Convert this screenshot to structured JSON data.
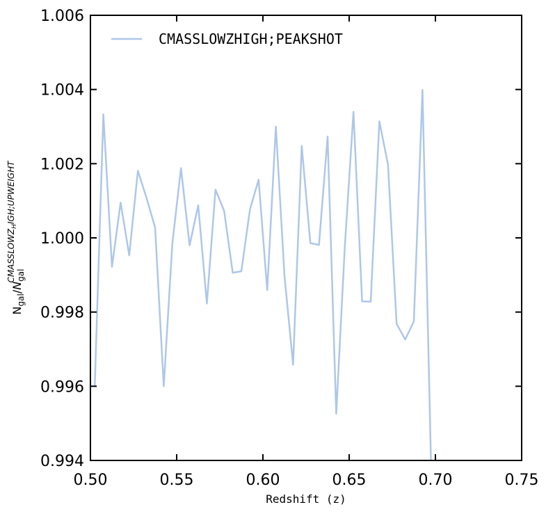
{
  "chart_data": {
    "type": "line",
    "xlabel": "Redshift (z)",
    "ylabel_parts": {
      "lhs": "N",
      "lhs_sub": "gal",
      "slash": "/",
      "rhs": "N",
      "rhs_sub": "gal",
      "rhs_sup": "CMASSLOWZ",
      "rhs_sup_sub": "H",
      "rhs_sup_rest": "IGH;UPWEIGHT"
    },
    "xlim": [
      0.5,
      0.75
    ],
    "ylim": [
      0.994,
      1.006
    ],
    "xticks": [
      "0.50",
      "0.55",
      "0.60",
      "0.65",
      "0.70",
      "0.75"
    ],
    "yticks": [
      "0.994",
      "0.996",
      "0.998",
      "1.000",
      "1.002",
      "1.004",
      "1.006"
    ],
    "grid": false,
    "legend_position": "top-left",
    "series": [
      {
        "name": "CMASSLOWZHIGH;PEAKSHOT",
        "color": "#aec7e8",
        "x": [
          0.5025,
          0.5075,
          0.5125,
          0.5175,
          0.5225,
          0.5275,
          0.5325,
          0.5375,
          0.5425,
          0.5475,
          0.5525,
          0.5575,
          0.5625,
          0.5675,
          0.5725,
          0.5775,
          0.5825,
          0.5875,
          0.5925,
          0.5975,
          0.6025,
          0.6075,
          0.6125,
          0.6175,
          0.6225,
          0.6275,
          0.6325,
          0.6375,
          0.6425,
          0.6475,
          0.6525,
          0.6575,
          0.6625,
          0.6675,
          0.6725,
          0.6775,
          0.6825,
          0.6875,
          0.6925,
          0.6975
        ],
        "y": [
          0.99598,
          1.00333,
          0.99922,
          1.00095,
          0.99953,
          1.00181,
          1.00108,
          1.00028,
          0.996,
          0.99985,
          1.00188,
          0.9998,
          1.00088,
          0.99823,
          1.0013,
          1.00073,
          0.99906,
          0.9991,
          1.00077,
          1.00157,
          0.99859,
          1.003,
          0.99898,
          0.99658,
          1.00248,
          0.99986,
          0.99981,
          1.00273,
          0.99526,
          0.99978,
          1.0034,
          0.99829,
          0.99828,
          1.00314,
          1.00198,
          0.99768,
          0.99726,
          0.99775,
          1.00399,
          0.9938
        ]
      }
    ]
  }
}
